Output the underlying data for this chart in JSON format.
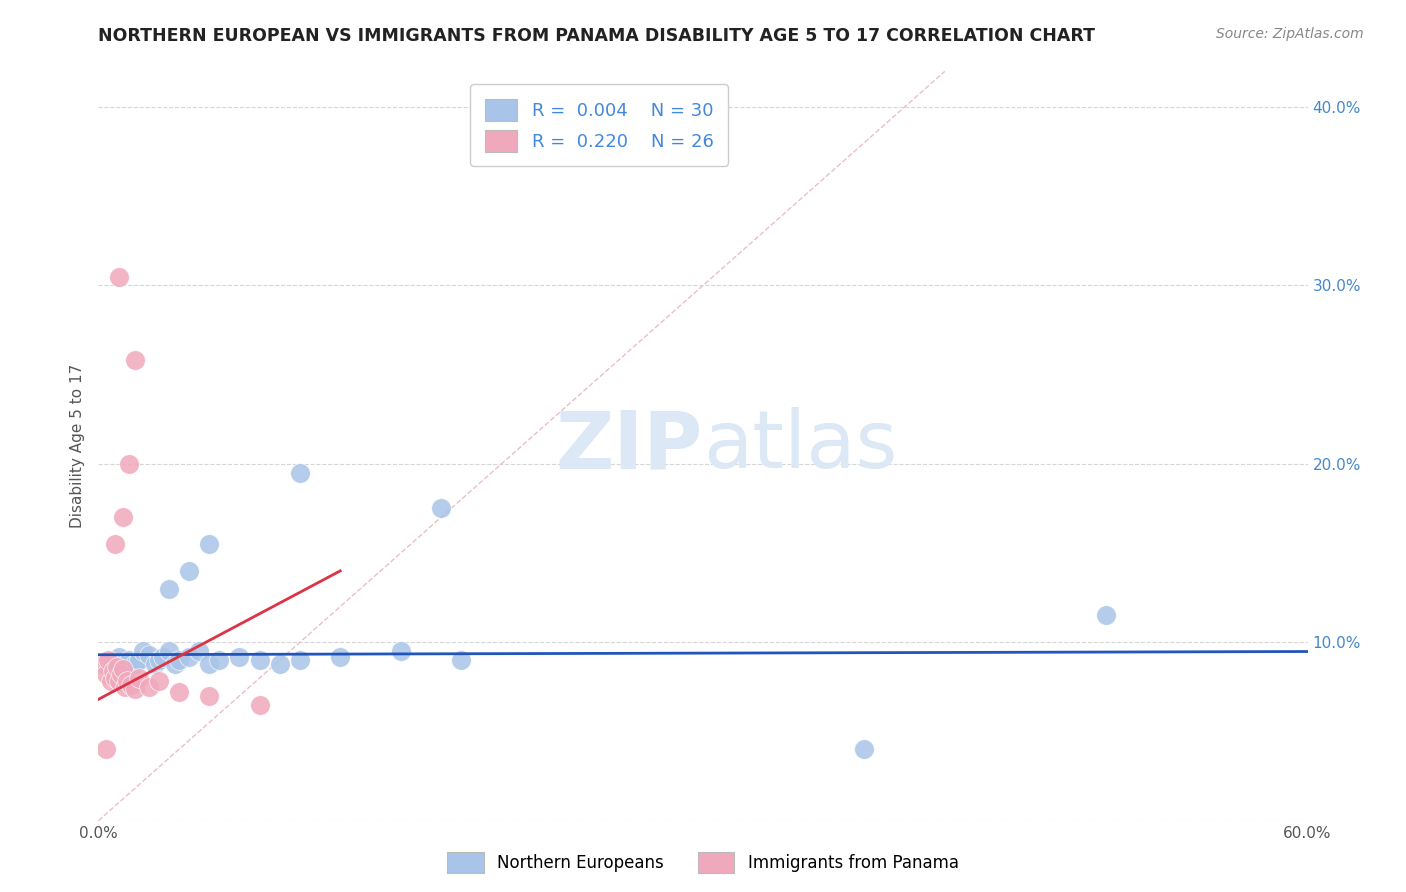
{
  "title": "NORTHERN EUROPEAN VS IMMIGRANTS FROM PANAMA DISABILITY AGE 5 TO 17 CORRELATION CHART",
  "source": "Source: ZipAtlas.com",
  "xlabel_label": "Northern Europeans",
  "xlabel_label2": "Immigrants from Panama",
  "ylabel": "Disability Age 5 to 17",
  "xlim": [
    0.0,
    0.6
  ],
  "ylim": [
    0.0,
    0.42
  ],
  "x_ticks": [
    0.0,
    0.1,
    0.2,
    0.3,
    0.4,
    0.5,
    0.6
  ],
  "y_ticks": [
    0.0,
    0.1,
    0.2,
    0.3,
    0.4
  ],
  "x_tick_labels": [
    "0.0%",
    "",
    "",
    "",
    "",
    "",
    "60.0%"
  ],
  "y_tick_labels_left": [
    "",
    "",
    "",
    "",
    ""
  ],
  "y_tick_labels_right": [
    "",
    "10.0%",
    "20.0%",
    "30.0%",
    "40.0%"
  ],
  "blue_R": "0.004",
  "blue_N": "30",
  "pink_R": "0.220",
  "pink_N": "26",
  "blue_color": "#a8c4e8",
  "pink_color": "#f0a8bc",
  "blue_line_color": "#2255bb",
  "pink_line_color": "#dd3344",
  "ref_line_color": "#e8b8c0",
  "watermark_color": "#dce8f5",
  "blue_points": [
    [
      0.01,
      0.092
    ],
    [
      0.015,
      0.09
    ],
    [
      0.018,
      0.088
    ],
    [
      0.02,
      0.09
    ],
    [
      0.022,
      0.095
    ],
    [
      0.025,
      0.093
    ],
    [
      0.028,
      0.088
    ],
    [
      0.03,
      0.09
    ],
    [
      0.032,
      0.092
    ],
    [
      0.035,
      0.095
    ],
    [
      0.038,
      0.088
    ],
    [
      0.04,
      0.09
    ],
    [
      0.045,
      0.092
    ],
    [
      0.05,
      0.095
    ],
    [
      0.055,
      0.088
    ],
    [
      0.06,
      0.09
    ],
    [
      0.07,
      0.092
    ],
    [
      0.08,
      0.09
    ],
    [
      0.09,
      0.088
    ],
    [
      0.1,
      0.09
    ],
    [
      0.12,
      0.092
    ],
    [
      0.15,
      0.095
    ],
    [
      0.18,
      0.09
    ],
    [
      0.035,
      0.13
    ],
    [
      0.045,
      0.14
    ],
    [
      0.055,
      0.155
    ],
    [
      0.1,
      0.195
    ],
    [
      0.17,
      0.175
    ],
    [
      0.5,
      0.115
    ],
    [
      0.38,
      0.04
    ]
  ],
  "pink_points": [
    [
      0.003,
      0.088
    ],
    [
      0.004,
      0.082
    ],
    [
      0.005,
      0.09
    ],
    [
      0.006,
      0.078
    ],
    [
      0.007,
      0.084
    ],
    [
      0.008,
      0.08
    ],
    [
      0.009,
      0.086
    ],
    [
      0.01,
      0.078
    ],
    [
      0.011,
      0.082
    ],
    [
      0.012,
      0.085
    ],
    [
      0.013,
      0.075
    ],
    [
      0.014,
      0.078
    ],
    [
      0.016,
      0.076
    ],
    [
      0.018,
      0.074
    ],
    [
      0.02,
      0.08
    ],
    [
      0.025,
      0.075
    ],
    [
      0.03,
      0.078
    ],
    [
      0.04,
      0.072
    ],
    [
      0.055,
      0.07
    ],
    [
      0.08,
      0.065
    ],
    [
      0.008,
      0.155
    ],
    [
      0.012,
      0.17
    ],
    [
      0.015,
      0.2
    ],
    [
      0.018,
      0.258
    ],
    [
      0.01,
      0.305
    ],
    [
      0.004,
      0.04
    ]
  ],
  "blue_trend_intercept": 0.093,
  "blue_trend_slope": 0.003,
  "pink_trend_intercept": 0.068,
  "pink_trend_slope": 0.6
}
